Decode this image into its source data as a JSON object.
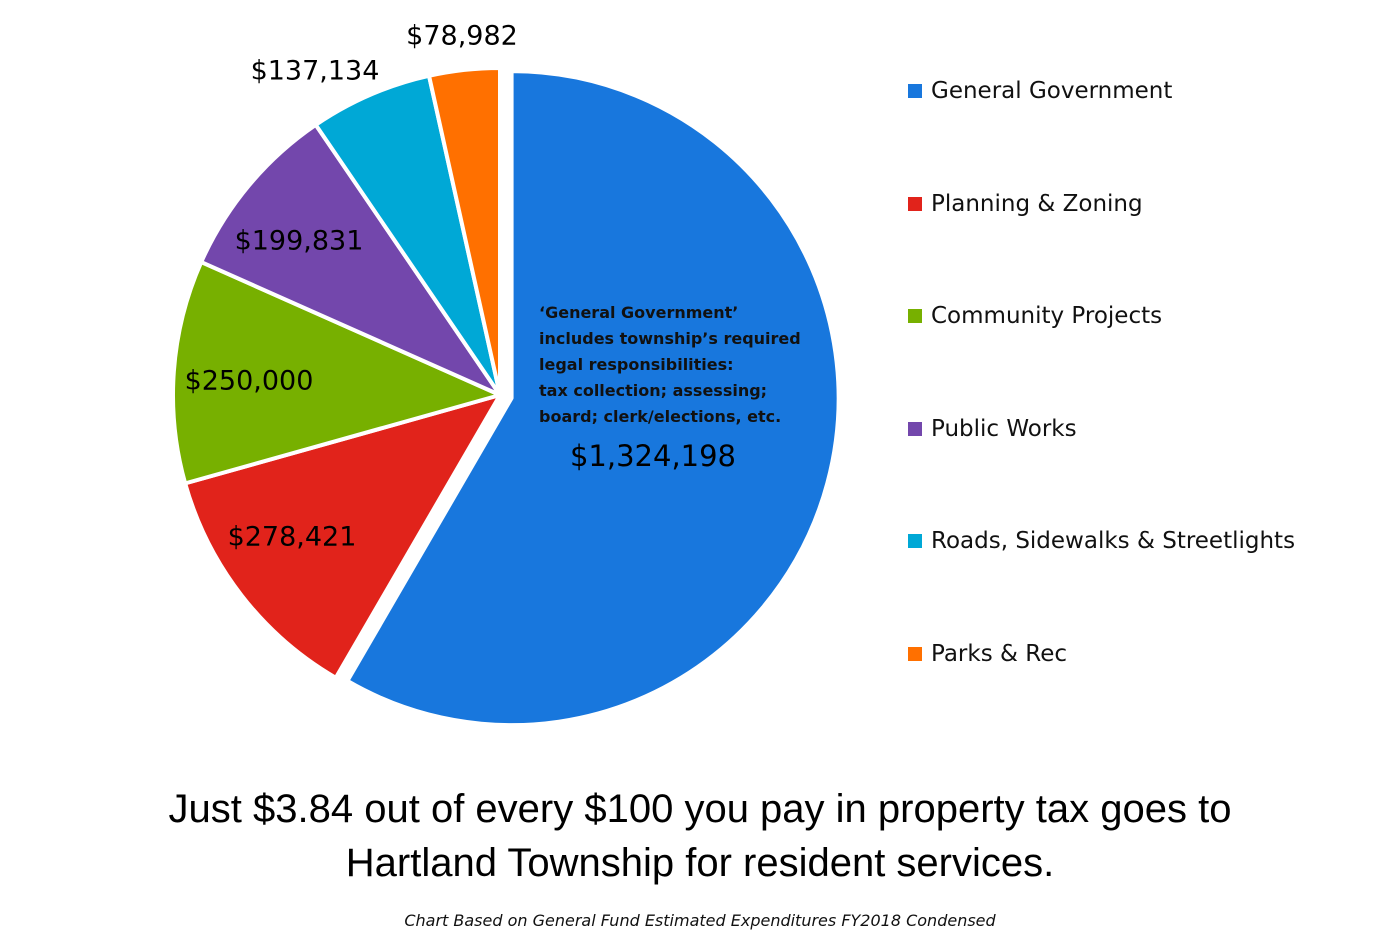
{
  "chart_data": {
    "type": "pie",
    "categories": [
      "General Government",
      "Planning & Zoning",
      "Community Projects",
      "Public Works",
      "Roads, Sidewalks & Streetlights",
      "Parks & Rec"
    ],
    "values": [
      1324198,
      278421,
      250000,
      199831,
      137134,
      78982
    ],
    "value_labels": [
      "$1,324,198",
      "$278,421",
      "$250,000",
      "$199,831",
      "$137,134",
      "$78,982"
    ],
    "colors": [
      "#1877DD",
      "#E1231B",
      "#77B000",
      "#7347AC",
      "#00A8D6",
      "#FF7000"
    ],
    "legend_placement": "right",
    "exploded_slice": "General Government",
    "annotation": [
      "‘General Government’",
      "includes  township’s required",
      "legal responsibilities:",
      "tax collection; assessing;",
      "board; clerk/elections, etc."
    ]
  },
  "headline": {
    "line1": "Just $3.84 out of every $100 you pay in property tax goes to",
    "line2": "Hartland Township for resident services."
  },
  "footnote": "Chart Based on General Fund Estimated Expenditures FY2018 Condensed"
}
